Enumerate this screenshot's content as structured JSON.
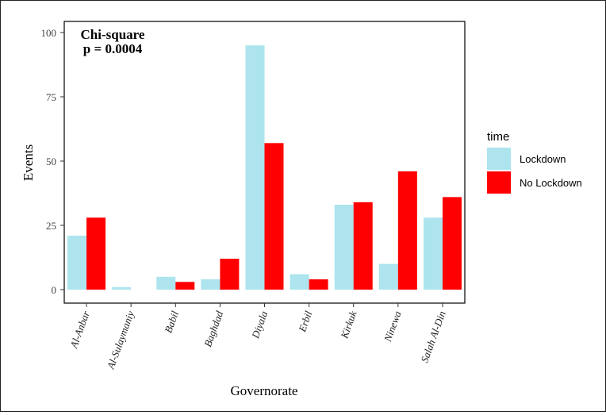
{
  "chart_data": {
    "type": "bar",
    "xlabel": "Governorate",
    "ylabel": "Events",
    "ylim": [
      0,
      104
    ],
    "yticks": [
      0,
      25,
      50,
      75,
      100
    ],
    "categories": [
      "Al-Anbar",
      "Al-Sulaymaniy",
      "Babil",
      "Baghdad",
      "Diyala",
      "Erbil",
      "Kirkuk",
      "Ninewa",
      "Salah Al-Din"
    ],
    "series": [
      {
        "name": "Lockdown",
        "color": "#ADE4EE",
        "values": [
          21,
          1,
          5,
          4,
          95,
          6,
          33,
          10,
          28
        ]
      },
      {
        "name": "No Lockdown",
        "color": "#FF0000",
        "values": [
          28,
          0,
          3,
          12,
          57,
          4,
          34,
          46,
          36
        ]
      }
    ],
    "annotation": {
      "line1": "Chi-square",
      "line2": "p = 0.0004"
    },
    "legend": {
      "title": "time",
      "position": "right"
    },
    "grid": false
  }
}
